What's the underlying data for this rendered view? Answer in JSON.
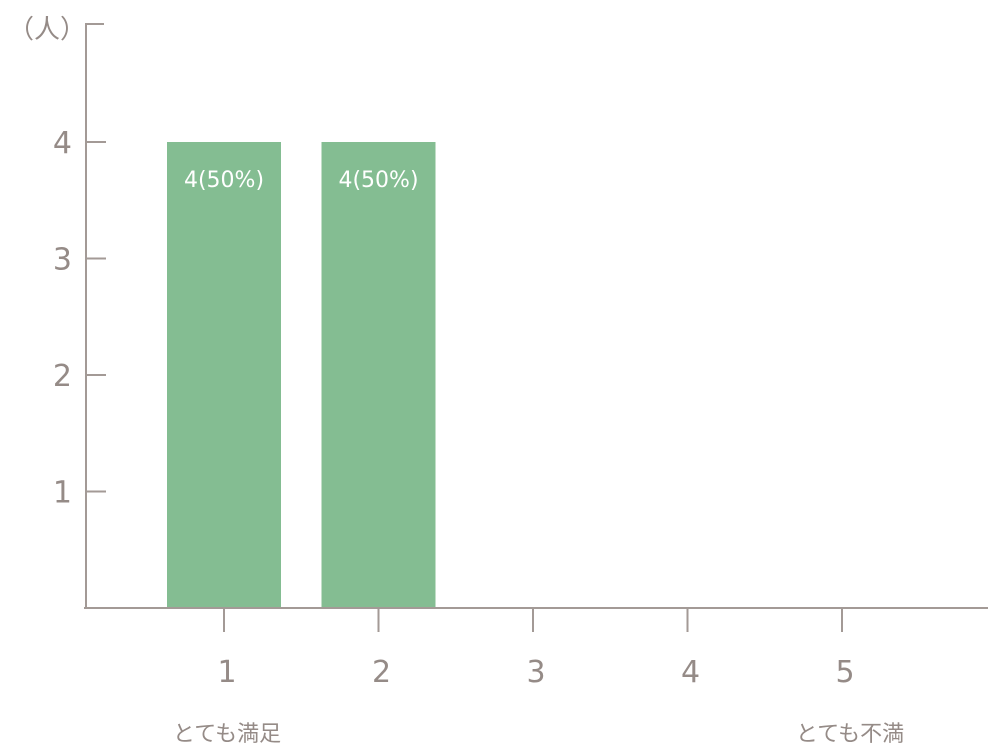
{
  "chart_data": {
    "type": "bar",
    "y_unit_label": "（人）",
    "categories": [
      "1",
      "2",
      "3",
      "4",
      "5"
    ],
    "values": [
      4,
      4,
      0,
      0,
      0
    ],
    "data_labels": [
      "4(50%)",
      "4(50%)",
      "",
      "",
      ""
    ],
    "yticks": [
      1,
      2,
      3,
      4
    ],
    "ylim": [
      0,
      5
    ],
    "anchor_labels": {
      "left": "とても満足",
      "right": "とても不満"
    },
    "bar_color": "#84bd92",
    "axis_color": "#a39a96",
    "text_color": "#958b87",
    "grid": false
  }
}
